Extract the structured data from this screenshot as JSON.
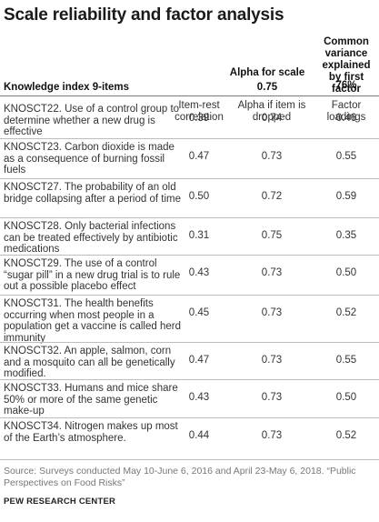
{
  "title": "Scale reliability and factor analysis",
  "header": {
    "common_variance": "Common variance explained by first factor",
    "alpha_for_scale": "Alpha for scale",
    "knowledge_label": "Knowledge index 9-items",
    "alpha_value": "0.75",
    "variance_value": "76%"
  },
  "columns": {
    "item_rest": "Item-rest correlation",
    "alpha_dropped": "Alpha if item is dropped",
    "factor_loadings": "Factor loadings"
  },
  "rows": [
    {
      "label": "KNOSCT22. Use of a control group to determine whether a new drug is effective",
      "item_rest": "0.39",
      "alpha": "0.74",
      "loading": "0.46"
    },
    {
      "label": "KNOSCT23. Carbon dioxide is made as a consequence of burning fossil fuels",
      "item_rest": "0.47",
      "alpha": "0.73",
      "loading": "0.55"
    },
    {
      "label": "KNOSCT27. The probability of an old bridge collapsing after a period of time",
      "item_rest": "0.50",
      "alpha": "0.72",
      "loading": "0.59"
    },
    {
      "label": "KNOSCT28. Only bacterial infections can be treated effectively by antibiotic medications",
      "item_rest": "0.31",
      "alpha": "0.75",
      "loading": "0.35"
    },
    {
      "label": "KNOSCT29. The use of a control “sugar pill” in a new drug trial is to rule out a possible placebo effect",
      "item_rest": "0.43",
      "alpha": "0.73",
      "loading": "0.50"
    },
    {
      "label": "KNOSCT31. The health benefits occurring when most people in a population get a vaccine is called herd immunity",
      "item_rest": "0.45",
      "alpha": "0.73",
      "loading": "0.52"
    },
    {
      "label": "KNOSCT32. An apple, salmon, corn and a mosquito can all be genetically modified.",
      "item_rest": "0.47",
      "alpha": "0.73",
      "loading": "0.55"
    },
    {
      "label": "KNOSCT33. Humans and mice share 50% or more of the same genetic make-up",
      "item_rest": "0.43",
      "alpha": "0.73",
      "loading": "0.50"
    },
    {
      "label": "KNOSCT34. Nitrogen makes up most of the Earth’s atmosphere.",
      "item_rest": "0.44",
      "alpha": "0.73",
      "loading": "0.52"
    }
  ],
  "footer": {
    "source": "Source: Surveys conducted May 10-June 6, 2016 and April 23-May 6, 2018. “Public Perspectives on Food Risks”",
    "org": "PEW RESEARCH CENTER"
  }
}
